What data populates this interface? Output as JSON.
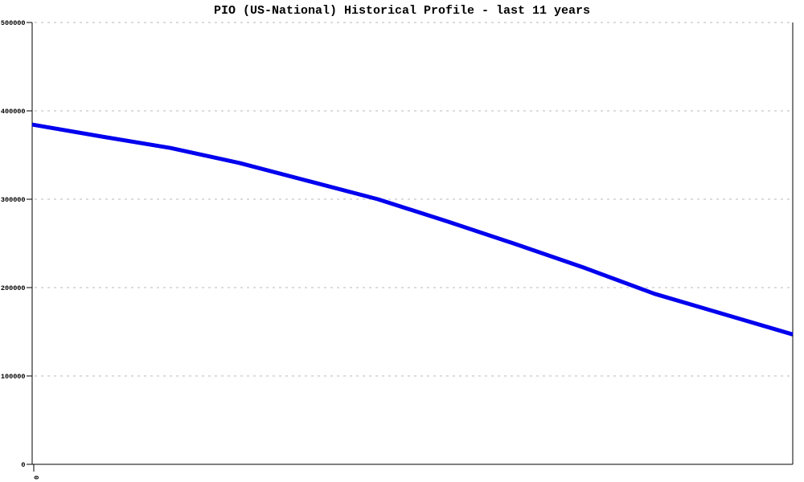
{
  "title": "PIO (US-National) Historical Profile - last 11 years",
  "chart_data": {
    "type": "line",
    "title": "PIO (US-National) Historical Profile - last 11 years",
    "xlabel": "",
    "ylabel": "",
    "x": [
      0,
      1,
      2,
      3,
      4,
      5,
      6,
      7,
      8,
      9,
      10,
      11
    ],
    "series": [
      {
        "name": "PIO (US-National)",
        "values": [
          384500,
          371000,
          358000,
          341000,
          320500,
          300000,
          275000,
          249000,
          222000,
          193000,
          170000,
          147000
        ]
      }
    ],
    "ylim": [
      0,
      500000
    ],
    "y_ticks": [
      0,
      100000,
      200000,
      300000,
      400000,
      500000
    ],
    "y_tick_labels": [
      "0",
      "100000",
      "200000",
      "300000",
      "400000",
      "500000"
    ],
    "x_tick_labels": [
      "0"
    ],
    "grid": "horizontal-dashed",
    "legend_position": "none",
    "line_color": "#0000ee",
    "grid_color": "#b8b8b8",
    "axis_color": "#000000",
    "text_color": "#000000",
    "background_color": "#ffffff"
  }
}
